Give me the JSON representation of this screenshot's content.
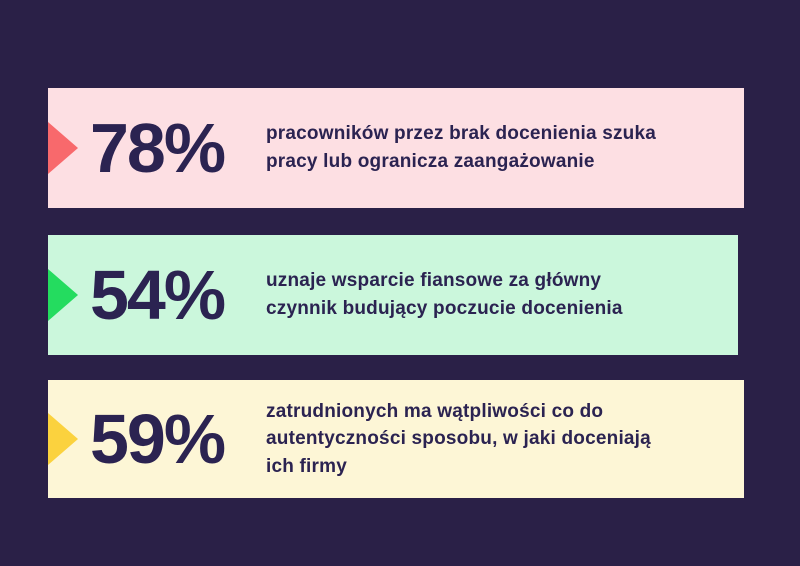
{
  "page": {
    "background_color": "#2A2047",
    "text_color": "#2B2351"
  },
  "stats": [
    {
      "value": "78%",
      "description": "pracowników przez brak docenienia szuka\npracy lub ogranicza zaangażowanie",
      "bar_color": "#FDDFE3",
      "arrow_color": "#F8696C"
    },
    {
      "value": "54%",
      "description": "uznaje wsparcie fiansowe za główny\nczynnik budujący poczucie docenienia",
      "bar_color": "#CBF7DC",
      "arrow_color": "#24DC5F"
    },
    {
      "value": "59%",
      "description": "zatrudnionych ma wątpliwości co do\nautentyczności sposobu, w jaki doceniają\nich firmy",
      "bar_color": "#FDF6D6",
      "arrow_color": "#FBD23E"
    }
  ],
  "chart_data": {
    "type": "table",
    "title": "",
    "categories": [
      "pracowników przez brak docenienia szuka pracy lub ogranicza zaangażowanie",
      "uznaje wsparcie fiansowe za główny czynnik budujący poczucie docenienia",
      "zatrudnionych ma wątpliwości co do autentyczności sposobu, w jaki doceniają ich firmy"
    ],
    "values": [
      78,
      54,
      59
    ],
    "unit": "%",
    "legend_position": "none",
    "grid": false
  }
}
